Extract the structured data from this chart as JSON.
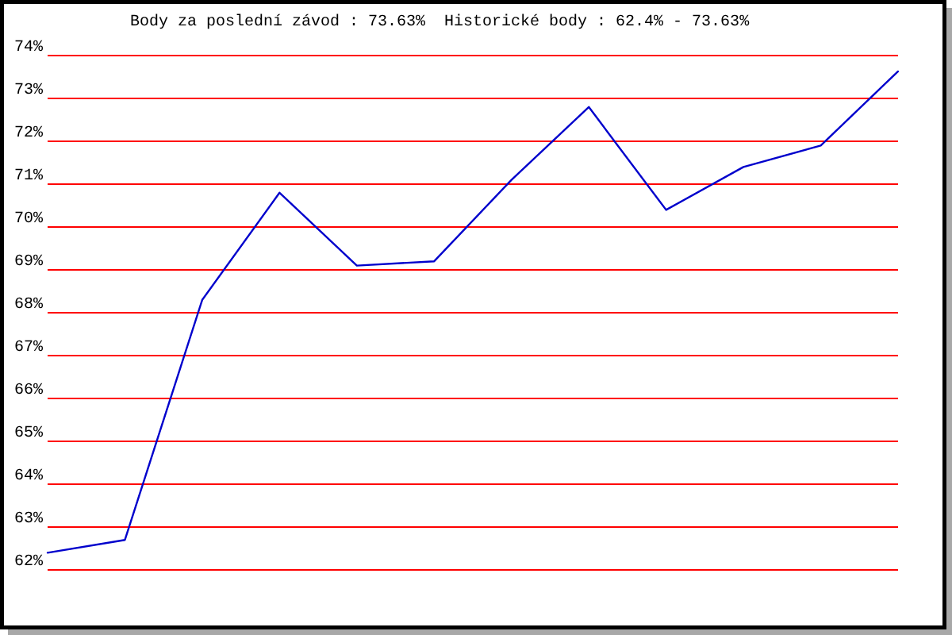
{
  "chart_data": {
    "type": "line",
    "title": "Body za poslední závod : 73.63%  Historické body : 62.4% - 73.63%",
    "categories": [
      null,
      null,
      null,
      null,
      null,
      null,
      null,
      null,
      null,
      null,
      null,
      null
    ],
    "values": [
      62.4,
      62.7,
      68.3,
      70.8,
      69.1,
      69.2,
      71.1,
      72.8,
      70.4,
      71.4,
      71.9,
      73.63
    ],
    "color": "#0000cc",
    "ylim": [
      62,
      74
    ],
    "yticks": [
      {
        "value": 62,
        "label": "62%"
      },
      {
        "value": 63,
        "label": "63%"
      },
      {
        "value": 64,
        "label": "64%"
      },
      {
        "value": 65,
        "label": "65%"
      },
      {
        "value": 66,
        "label": "66%"
      },
      {
        "value": 67,
        "label": "67%"
      },
      {
        "value": 68,
        "label": "68%"
      },
      {
        "value": 69,
        "label": "69%"
      },
      {
        "value": 70,
        "label": "70%"
      },
      {
        "value": 71,
        "label": "71%"
      },
      {
        "value": 72,
        "label": "72%"
      },
      {
        "value": 73,
        "label": "73%"
      },
      {
        "value": 74,
        "label": "74%"
      }
    ],
    "grid": "y",
    "tick_labels": "y"
  }
}
